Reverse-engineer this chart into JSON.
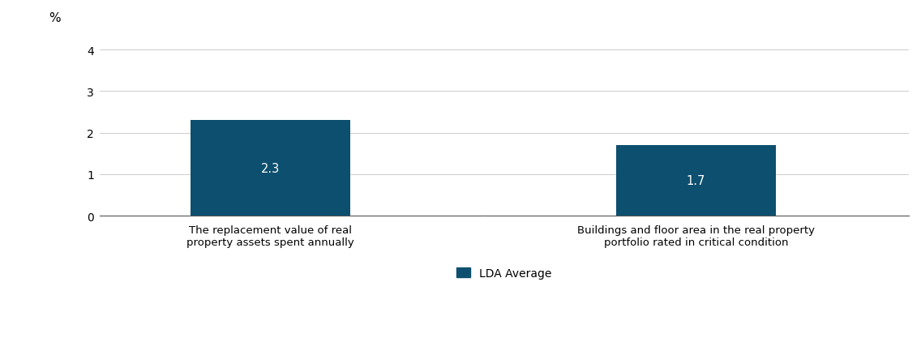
{
  "categories": [
    "The replacement value of real\nproperty assets spent annually",
    "Buildings and floor area in the real property\nportfolio rated in critical condition"
  ],
  "values": [
    2.3,
    1.7
  ],
  "bar_color": "#0d4f6e",
  "bar_labels": [
    "2.3",
    "1.7"
  ],
  "bar_positions": [
    1,
    3
  ],
  "bar_width": 0.75,
  "xlim": [
    0.2,
    4.0
  ],
  "ylim": [
    0,
    4.2
  ],
  "yticks": [
    0,
    1,
    2,
    3,
    4
  ],
  "ylabel_text": "%",
  "legend_label": "LDA Average",
  "label_fontsize": 9.5,
  "bar_label_fontsize": 10.5,
  "ylabel_fontsize": 11,
  "tick_fontsize": 10,
  "legend_fontsize": 10,
  "background_color": "#ffffff",
  "grid_color": "#cccccc",
  "bar_text_color": "#ffffff",
  "axis_color": "#555555"
}
